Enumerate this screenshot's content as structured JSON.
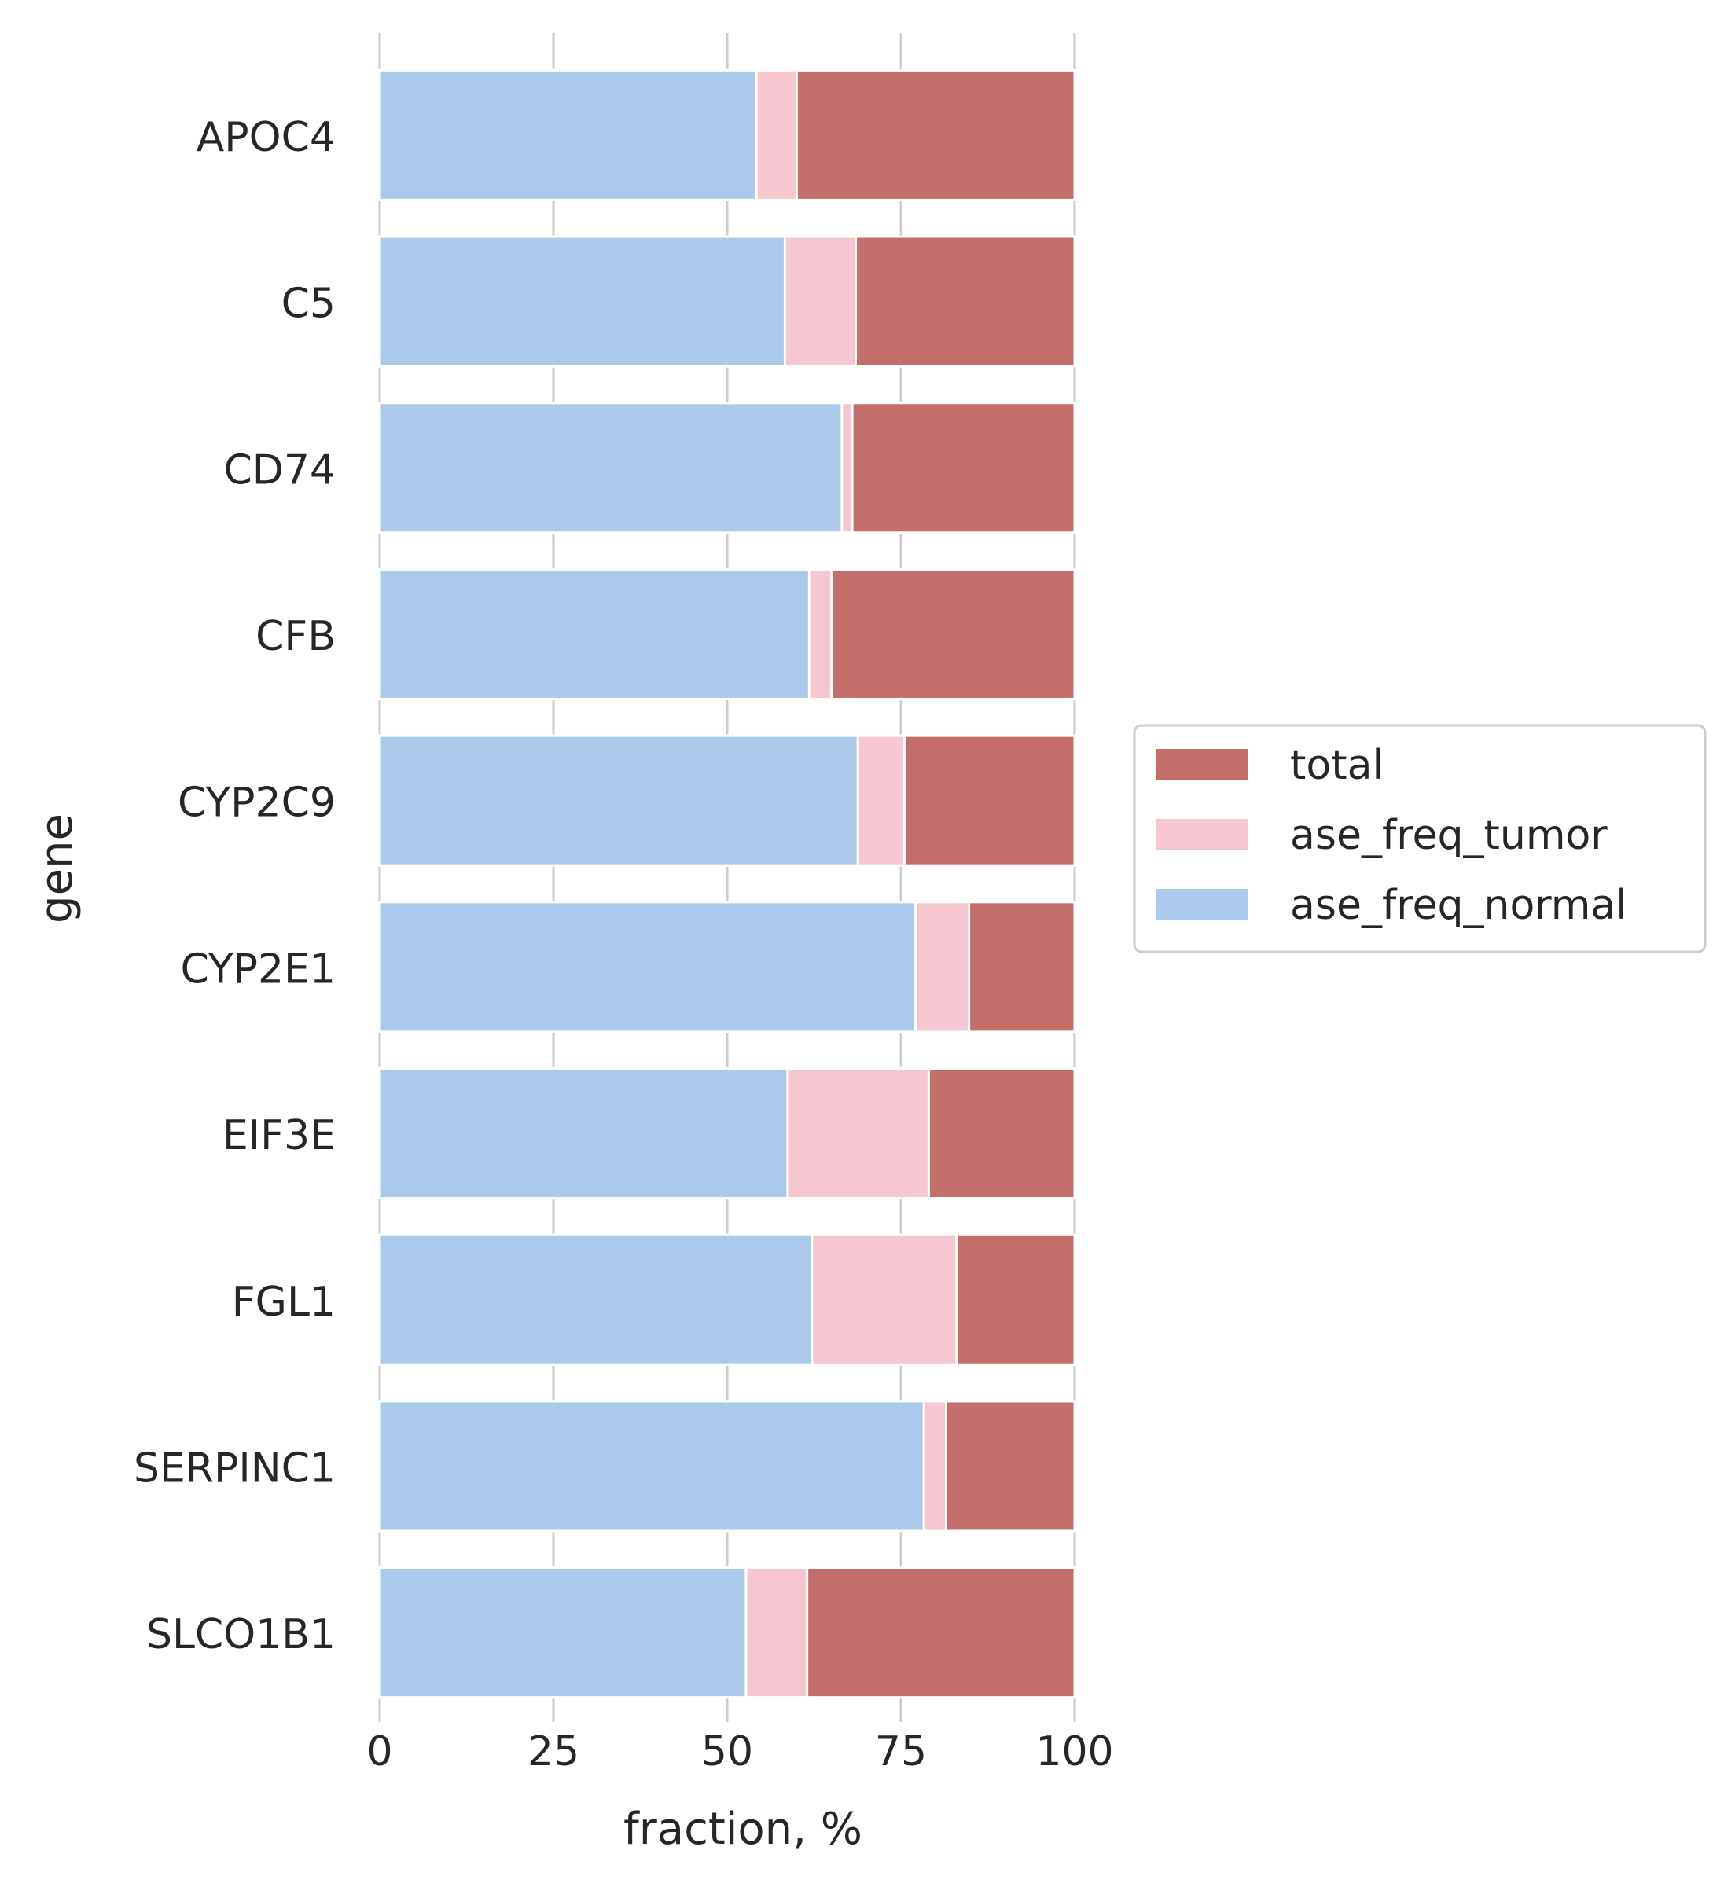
{
  "chart_data": {
    "type": "bar",
    "orientation": "horizontal",
    "stacking": "overlay",
    "xlabel": "fraction, %",
    "ylabel": "gene",
    "xlim": [
      0,
      100
    ],
    "xticks": [
      "0",
      "25",
      "50",
      "75",
      "100"
    ],
    "grid": true,
    "legend_position": "center-right outside",
    "categories": [
      "APOC4",
      "C5",
      "CD74",
      "CFB",
      "CYP2C9",
      "CYP2E1",
      "EIF3E",
      "FGL1",
      "SERPINC1",
      "SLCO1B1"
    ],
    "series": [
      {
        "name": "total",
        "color": "#c46e6c",
        "values": [
          100,
          100,
          100,
          100,
          100,
          100,
          100,
          100,
          100,
          100
        ]
      },
      {
        "name": "ase_freq_tumor",
        "color": "#f6c7d0",
        "values": [
          60,
          68.5,
          68,
          65,
          75.5,
          84.8,
          79,
          83,
          81.5,
          61.5
        ]
      },
      {
        "name": "ase_freq_normal",
        "color": "#abc9ea",
        "values": [
          54.2,
          58.3,
          66.5,
          61.8,
          68.8,
          77.1,
          58.7,
          62.2,
          78.3,
          52.7
        ]
      }
    ]
  }
}
